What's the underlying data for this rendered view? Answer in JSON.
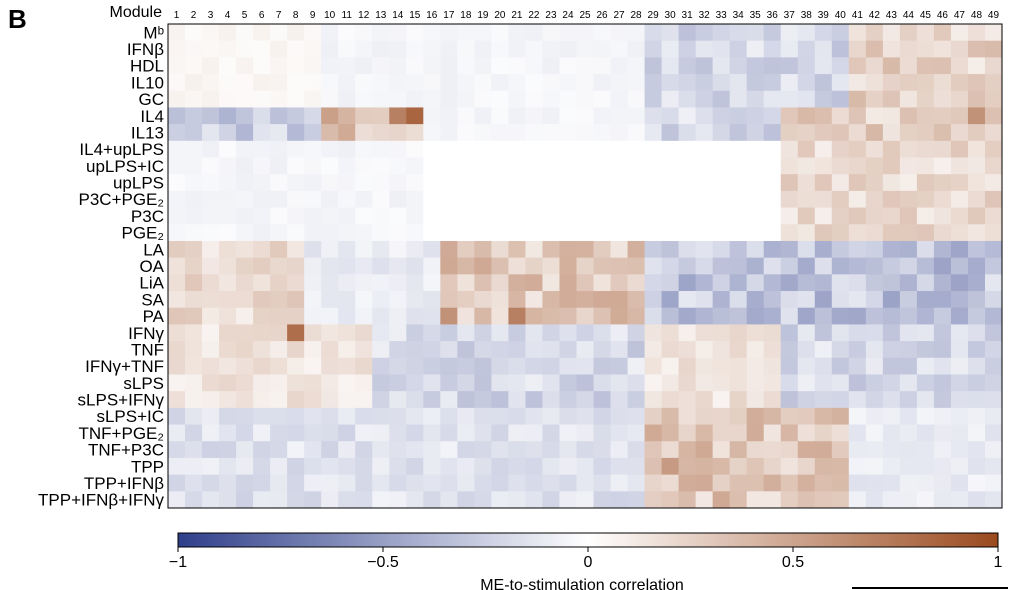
{
  "panel_label": "B",
  "chart_data": {
    "type": "heatmap",
    "column_axis_label": "Module",
    "columns": [
      "1",
      "2",
      "3",
      "4",
      "5",
      "6",
      "7",
      "8",
      "9",
      "10",
      "11",
      "12",
      "13",
      "14",
      "15",
      "16",
      "17",
      "18",
      "19",
      "20",
      "21",
      "22",
      "23",
      "24",
      "25",
      "26",
      "27",
      "28",
      "29",
      "30",
      "31",
      "32",
      "33",
      "34",
      "35",
      "36",
      "37",
      "38",
      "39",
      "40",
      "41",
      "42",
      "43",
      "44",
      "45",
      "46",
      "47",
      "48",
      "49"
    ],
    "rows": [
      "Mᵇ",
      "IFNβ",
      "HDL",
      "IL10",
      "GC",
      "IL4",
      "IL13",
      "IL4+upLPS",
      "upLPS+IC",
      "upLPS",
      "P3C+PGE₂",
      "P3C",
      "PGE₂",
      "LA",
      "OA",
      "LiA",
      "SA",
      "PA",
      "IFNγ",
      "TNF",
      "IFNγ+TNF",
      "sLPS",
      "sLPS+IFNγ",
      "sLPS+IC",
      "TNF+PGE₂",
      "TNF+P3C",
      "TPP",
      "TPP+IFNβ",
      "TPP+IFNβ+IFNγ"
    ],
    "row_regions": [
      {
        "rows": [
          0,
          4
        ],
        "columns": [
          1,
          9
        ],
        "value": 0.05
      },
      {
        "rows": [
          0,
          4
        ],
        "columns": [
          10,
          28
        ],
        "value": -0.05
      },
      {
        "rows": [
          0,
          4
        ],
        "columns": [
          29,
          40
        ],
        "value": -0.2
      },
      {
        "rows": [
          0,
          4
        ],
        "columns": [
          41,
          49
        ],
        "value": 0.25
      },
      {
        "rows": [
          5,
          6
        ],
        "columns": [
          1,
          9
        ],
        "value": -0.25
      },
      {
        "rows": [
          5,
          6
        ],
        "columns": [
          10,
          15
        ],
        "value": 0.4
      },
      {
        "rows": [
          5,
          6
        ],
        "columns": [
          16,
          28
        ],
        "value": -0.05
      },
      {
        "rows": [
          5,
          6
        ],
        "columns": [
          29,
          36
        ],
        "value": -0.2
      },
      {
        "rows": [
          5,
          6
        ],
        "columns": [
          37,
          49
        ],
        "value": 0.25
      },
      {
        "rows": [
          7,
          12
        ],
        "columns": [
          1,
          15
        ],
        "value": -0.05
      },
      {
        "rows": [
          7,
          12
        ],
        "columns": [
          16,
          36
        ],
        "value": 0.0
      },
      {
        "rows": [
          7,
          12
        ],
        "columns": [
          37,
          49
        ],
        "value": 0.2
      },
      {
        "rows": [
          13,
          17
        ],
        "columns": [
          1,
          8
        ],
        "value": 0.2
      },
      {
        "rows": [
          13,
          17
        ],
        "columns": [
          9,
          16
        ],
        "value": -0.1
      },
      {
        "rows": [
          13,
          17
        ],
        "columns": [
          17,
          28
        ],
        "value": 0.3
      },
      {
        "rows": [
          13,
          17
        ],
        "columns": [
          29,
          49
        ],
        "value": -0.3
      },
      {
        "rows": [
          18,
          22
        ],
        "columns": [
          1,
          12
        ],
        "value": 0.15
      },
      {
        "rows": [
          18,
          22
        ],
        "columns": [
          13,
          28
        ],
        "value": -0.2
      },
      {
        "rows": [
          18,
          22
        ],
        "columns": [
          29,
          36
        ],
        "value": 0.15
      },
      {
        "rows": [
          18,
          22
        ],
        "columns": [
          37,
          49
        ],
        "value": -0.2
      },
      {
        "rows": [
          23,
          28
        ],
        "columns": [
          1,
          28
        ],
        "value": -0.15
      },
      {
        "rows": [
          23,
          28
        ],
        "columns": [
          29,
          40
        ],
        "value": 0.3
      },
      {
        "rows": [
          23,
          28
        ],
        "columns": [
          41,
          49
        ],
        "value": -0.1
      }
    ],
    "notable_cells": [
      {
        "row": 5,
        "column": 14,
        "value": 0.7
      },
      {
        "row": 5,
        "column": 15,
        "value": 0.85
      },
      {
        "row": 5,
        "column": 48,
        "value": 0.6
      },
      {
        "row": 17,
        "column": 17,
        "value": 0.6
      },
      {
        "row": 17,
        "column": 21,
        "value": 0.7
      },
      {
        "row": 18,
        "column": 8,
        "value": 0.8
      },
      {
        "row": 26,
        "column": 30,
        "value": 0.55
      }
    ],
    "colorbar": {
      "title": "ME-to-stimulation correlation",
      "range": [
        -1,
        1
      ],
      "ticks": [
        -1,
        -0.5,
        0,
        0.5,
        1
      ],
      "tick_labels": [
        "−1",
        "−0.5",
        "0",
        "0.5",
        "1"
      ],
      "color_negative": "#2f3f8a",
      "color_zero": "#ffffff",
      "color_positive": "#9a4a1e"
    }
  }
}
